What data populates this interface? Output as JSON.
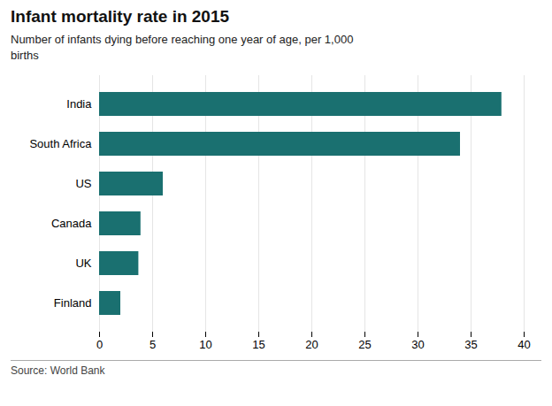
{
  "chart_data": {
    "type": "bar",
    "orientation": "horizontal",
    "title": "Infant mortality rate in 2015",
    "subtitle": "Number of infants dying before reaching one year of age, per 1,000\nbirths",
    "source": "Source: World Bank",
    "categories": [
      "Finland",
      "UK",
      "Canada",
      "US",
      "South Africa",
      "India"
    ],
    "values": [
      2.0,
      3.7,
      3.9,
      6.0,
      34.0,
      37.9
    ],
    "color": "#1a7070",
    "xlim": [
      0,
      40
    ],
    "xticks": [
      0,
      5,
      10,
      15,
      20,
      25,
      30,
      35,
      40
    ],
    "grid": true
  }
}
